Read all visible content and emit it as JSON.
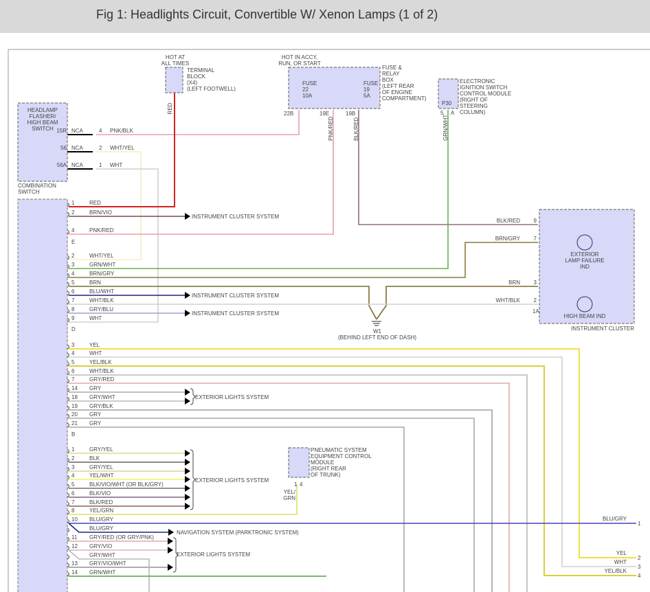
{
  "title": "Fig 1: Headlights Circuit, Convertible W/ Xenon Lamps (1 of 2)",
  "terminal_block": {
    "hot": [
      "HOT AT",
      "ALL TIMES"
    ],
    "label": [
      "TERMINAL",
      "BLOCK",
      "(X4)",
      "(LEFT FOOTWELL)"
    ],
    "wire": "RED",
    "color": "#d42020"
  },
  "fuse_box": {
    "hot": [
      "HOT IN ACCY,",
      "RUN, OR START"
    ],
    "label": [
      "FUSE &",
      "RELAY",
      "BOX",
      "(LEFT REAR",
      "OF ENGINE",
      "COMPARTMENT)"
    ],
    "fuse22": [
      "FUSE",
      "22",
      "10A"
    ],
    "fuse19": [
      "FUSE",
      "19",
      "5A"
    ],
    "pins": [
      "22B",
      "19E",
      "19B"
    ],
    "wires": [
      "PNK/RED",
      "BLK/RED"
    ]
  },
  "eis_module": {
    "label": [
      "ELECTRONIC",
      "IGNITION SWITCH",
      "CONTROL MODULE",
      "(RIGHT OF",
      "STEERING",
      "COLUMN)"
    ],
    "connector": "P30",
    "pins": [
      "5",
      "A"
    ],
    "wire": "GRN/WHT"
  },
  "headlamp_switch": {
    "label": [
      "HEADLAMP",
      "FLASHER/",
      "HIGH BEAM",
      "SWITCH"
    ],
    "footer": [
      "COMBINATION",
      "SWITCH"
    ],
    "rows": [
      {
        "term": "15R",
        "nca": "NCA",
        "pin": "4",
        "wire": "PNK/BLK",
        "color": "#e8a0a8"
      },
      {
        "term": "56",
        "nca": "NCA",
        "pin": "2",
        "wire": "WHT/YEL",
        "color": "#f0f0c0"
      },
      {
        "term": "56A",
        "nca": "NCA",
        "pin": "1",
        "wire": "WHT",
        "color": "#d0d0d0"
      }
    ]
  },
  "instrument_cluster": {
    "label": "INSTRUMENT CLUSTER",
    "lamp1": [
      "EXTERIOR",
      "LAMP FAILURE",
      "IND"
    ],
    "lamp2": "HIGH BEAM IND",
    "pins": [
      {
        "pin": "9",
        "wire": "BLK/RED"
      },
      {
        "pin": "7",
        "wire": "BRN/GRY"
      },
      {
        "pin": "3",
        "wire": "BRN"
      },
      {
        "pin": "2",
        "wire": "WHT/BLK"
      }
    ],
    "connector": "1A"
  },
  "ground": {
    "name": "W1",
    "location": "(BEHIND LEFT END OF DASH)"
  },
  "pneumatic": {
    "label": [
      "PNEUMATIC SYSTEM",
      "EQUIPMENT CONTROL",
      "MODULE",
      "(RIGHT REAR",
      "OF TRUNK)"
    ],
    "pins": [
      "1",
      "4"
    ],
    "wire": [
      "YEL/",
      "GRN"
    ]
  },
  "right_connector": [
    {
      "pin": "1",
      "wire": "BLU/GRY"
    },
    {
      "pin": "2",
      "wire": "YEL"
    },
    {
      "pin": "3",
      "wire": "WHT"
    },
    {
      "pin": "4",
      "wire": "YEL/BLK"
    }
  ],
  "groups": [
    {
      "end": "E",
      "rows": [
        {
          "pin": "1",
          "wire": "RED",
          "color": "#d42020"
        },
        {
          "pin": "2",
          "wire": "BRN/VIO",
          "color": "#705050",
          "dest": "INSTRUMENT CLUSTER SYSTEM"
        },
        {
          "pin": "4",
          "wire": "PNK/RED",
          "color": "#e8a0a8"
        }
      ]
    },
    {
      "end": "D",
      "rows": [
        {
          "pin": "2",
          "wire": "WHT/YEL",
          "color": "#f0f0c0"
        },
        {
          "pin": "3",
          "wire": "GRN/WHT",
          "color": "#6ab04c"
        },
        {
          "pin": "4",
          "wire": "BRN/GRY",
          "color": "#8a7a40"
        },
        {
          "pin": "5",
          "wire": "BRN",
          "color": "#7a6a30"
        },
        {
          "pin": "6",
          "wire": "BLU/WHT",
          "color": "#202080",
          "dest": "INSTRUMENT CLUSTER SYSTEM"
        },
        {
          "pin": "7",
          "wire": "WHT/BLK",
          "color": "#d0d0d0"
        },
        {
          "pin": "8",
          "wire": "GRY/BLU",
          "color": "#9aa0d8",
          "dest": "INSTRUMENT CLUSTER SYSTEM"
        },
        {
          "pin": "9",
          "wire": "WHT",
          "color": "#d0d0d0"
        }
      ]
    },
    {
      "end": "B",
      "dest": "EXTERIOR LIGHTS SYSTEM",
      "rows": [
        {
          "pin": "3",
          "wire": "YEL",
          "color": "#f0e040"
        },
        {
          "pin": "4",
          "wire": "WHT",
          "color": "#d0d0d0"
        },
        {
          "pin": "5",
          "wire": "YEL/BLK",
          "color": "#d8d040"
        },
        {
          "pin": "6",
          "wire": "WHT/BLK",
          "color": "#b8b8b8"
        },
        {
          "pin": "7",
          "wire": "GRY/RED",
          "color": "#e0a8a8"
        },
        {
          "pin": "14",
          "wire": "GRY",
          "color": "#a8a8a8"
        },
        {
          "pin": "18",
          "wire": "GRY/WHT",
          "color": "#b8b8b8"
        },
        {
          "pin": "19",
          "wire": "GRY/BLK",
          "color": "#a0a0a0"
        },
        {
          "pin": "20",
          "wire": "GRY",
          "color": "#a8a8a8"
        },
        {
          "pin": "21",
          "wire": "GRY",
          "color": "#a8a8a8"
        }
      ]
    },
    {
      "end": "",
      "dest": "EXTERIOR LIGHTS SYSTEM",
      "dest2": "NAVIGATION SYSTEM (PARKTRONIC SYSTEM)",
      "dest3": "EXTERIOR LIGHTS SYSTEM",
      "rows": [
        {
          "pin": "1",
          "wire": "GRY/YEL",
          "color": "#d8d890"
        },
        {
          "pin": "2",
          "wire": "BLK",
          "color": "#606060"
        },
        {
          "pin": "3",
          "wire": "GRY/YEL",
          "color": "#d8d0a0"
        },
        {
          "pin": "4",
          "wire": "YEL/WHT",
          "color": "#f0f060"
        },
        {
          "pin": "5",
          "wire": "BLK/VIO/WHT (OR BLK/GRY)",
          "color": "#707070"
        },
        {
          "pin": "6",
          "wire": "BLK/VIO",
          "color": "#806080"
        },
        {
          "pin": "7",
          "wire": "BLK/RED",
          "color": "#806060"
        },
        {
          "pin": "8",
          "wire": "YEL/GRN",
          "color": "#d8e070"
        },
        {
          "pin": "10",
          "wire": "BLU/GRY",
          "color": "#4040c0"
        },
        {
          "pin": "",
          "wire": "BLU/GRY",
          "color": "#202080"
        },
        {
          "pin": "11",
          "wire": "GRY/RED (OR GRY/PNK)",
          "color": "#e0a8a8"
        },
        {
          "pin": "12",
          "wire": "GRY/VIO",
          "color": "#d8b0d0"
        },
        {
          "pin": "",
          "wire": "GRY/WHT",
          "color": "#b8b8b8"
        },
        {
          "pin": "13",
          "wire": "GRY/VIO/WHT",
          "color": "#909090"
        },
        {
          "pin": "14",
          "wire": "GRN/WHT",
          "color": "#50a040"
        }
      ]
    }
  ]
}
